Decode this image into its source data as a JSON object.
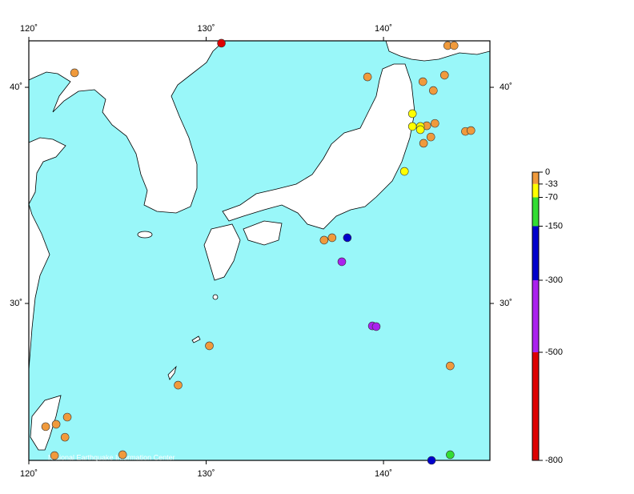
{
  "chart_data": {
    "type": "scatter",
    "xlim": [
      120,
      146
    ],
    "ylim": [
      22.74,
      42.15
    ],
    "xticks": [
      {
        "value": 120,
        "label": "120˚"
      },
      {
        "value": 130,
        "label": "130˚"
      },
      {
        "value": 140,
        "label": "140˚"
      }
    ],
    "yticks": [
      {
        "value": 30,
        "label": "30˚"
      },
      {
        "value": 40,
        "label": "40˚"
      }
    ],
    "credit": "National Earthquake Information Center",
    "series": [
      {
        "color": "#f09a3c",
        "x": [
          122.58,
          139.1,
          143.62,
          143.98,
          142.22,
          143.44,
          142.81,
          142.9,
          142.44,
          142.26,
          142.67,
          144.62,
          144.93,
          136.65,
          137.1,
          130.18,
          128.42,
          143.76,
          120.95,
          121.54,
          122.17,
          122.04,
          121.45,
          125.29
        ],
        "values": [
          40.67,
          40.48,
          41.93,
          41.93,
          40.26,
          40.56,
          39.85,
          38.33,
          38.22,
          37.41,
          37.7,
          37.96,
          38.0,
          32.93,
          33.04,
          28.04,
          26.22,
          27.11,
          24.3,
          24.41,
          24.74,
          23.81,
          22.96,
          23.0
        ]
      },
      {
        "color": "#ffff00",
        "x": [
          141.63,
          141.63,
          142.08,
          142.08,
          141.18
        ],
        "values": [
          38.78,
          38.19,
          38.19,
          38.04,
          36.11
        ]
      },
      {
        "color": "#33dd33",
        "x": [
          143.76
        ],
        "values": [
          23.0
        ]
      },
      {
        "color": "#0000cc",
        "x": [
          137.96,
          142.71
        ],
        "values": [
          33.04,
          22.74
        ]
      },
      {
        "color": "#aa22ee",
        "x": [
          137.65,
          139.37,
          139.59
        ],
        "values": [
          31.93,
          28.96,
          28.93
        ]
      },
      {
        "color": "#dd0000",
        "x": [
          130.86
        ],
        "values": [
          42.04
        ]
      }
    ],
    "colorbar": {
      "lim": [
        0,
        -800
      ],
      "ticks": [
        0,
        -33,
        -70,
        -150,
        -300,
        -500,
        -800
      ],
      "colors": [
        "#f09a3c",
        "#ffff00",
        "#33dd33",
        "#0000cc",
        "#aa22ee",
        "#dd0000"
      ]
    }
  }
}
